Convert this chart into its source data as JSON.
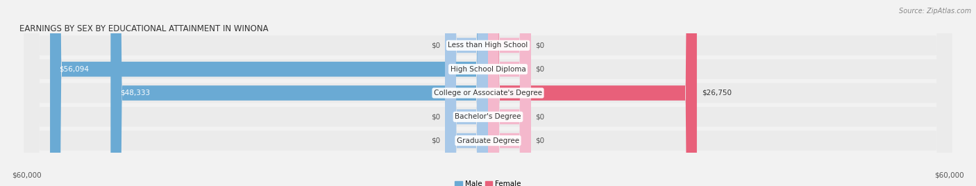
{
  "title": "EARNINGS BY SEX BY EDUCATIONAL ATTAINMENT IN WINONA",
  "source": "Source: ZipAtlas.com",
  "categories": [
    "Less than High School",
    "High School Diploma",
    "College or Associate's Degree",
    "Bachelor's Degree",
    "Graduate Degree"
  ],
  "male_values": [
    0,
    56094,
    48333,
    0,
    0
  ],
  "female_values": [
    0,
    0,
    26750,
    0,
    0
  ],
  "male_labels": [
    "$0",
    "$56,094",
    "$48,333",
    "$0",
    "$0"
  ],
  "female_labels": [
    "$0",
    "$0",
    "$26,750",
    "$0",
    "$0"
  ],
  "max_val": 60000,
  "stub_val": 5500,
  "male_color": "#a8c8e8",
  "male_color_strong": "#6aaad4",
  "female_color": "#f4b8cc",
  "female_color_strong": "#e8607a",
  "row_bg": "#e8e8e8",
  "fig_bg": "#f2f2f2",
  "axis_label_left": "$60,000",
  "axis_label_right": "$60,000",
  "legend_male": "Male",
  "legend_female": "Female",
  "title_fontsize": 8.5,
  "source_fontsize": 7,
  "label_fontsize": 7.5,
  "category_fontsize": 7.5
}
